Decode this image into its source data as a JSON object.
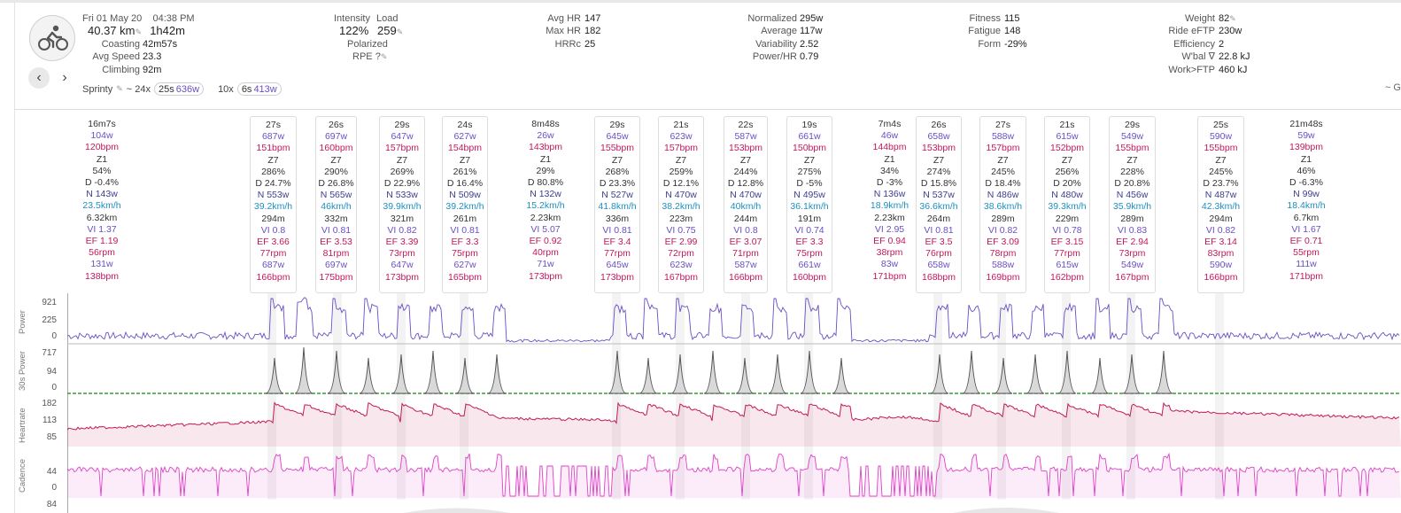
{
  "header": {
    "date": "Fri 01 May 20",
    "time": "04:38 PM",
    "distance": "40.37 km",
    "duration": "1h42m",
    "coasting_label": "Coasting",
    "coasting": "42m57s",
    "avg_speed_label": "Avg Speed",
    "avg_speed": "23.3",
    "climbing_label": "Climbing",
    "climbing": "92m",
    "intensity_label": "Intensity",
    "intensity": "122%",
    "load_label": "Load",
    "load": "259",
    "polarized": "Polarized",
    "rpe_label": "RPE",
    "rpe": "?",
    "avg_hr_label": "Avg HR",
    "avg_hr": "147",
    "max_hr_label": "Max HR",
    "max_hr": "182",
    "hrrc_label": "HRRc",
    "hrrc": "25",
    "normalized_label": "Normalized",
    "normalized": "295w",
    "average_label": "Average",
    "average": "117w",
    "variability_label": "Variability",
    "variability": "2.52",
    "power_hr_label": "Power/HR",
    "power_hr": "0.79",
    "fitness_label": "Fitness",
    "fitness": "115",
    "fatigue_label": "Fatigue",
    "fatigue": "148",
    "form_label": "Form",
    "form": "-29%",
    "weight_label": "Weight",
    "weight": "82",
    "ride_eftp_label": "Ride eFTP",
    "ride_eftp": "230w",
    "efficiency_label": "Efficiency",
    "efficiency": "2",
    "wbal_label": "W'bal ∇",
    "wbal": "22.8 kJ",
    "work_ftp_label": "Work>FTP",
    "work_ftp": "460 kJ",
    "sprint_label": "Sprinty",
    "sprint_a_prefix": "~ 24x",
    "sprint_a_dur": "25s",
    "sprint_a_pw": "636w",
    "sprint_b_prefix": "10x",
    "sprint_b_dur": "6s",
    "sprint_b_pw": "413w",
    "cut_text": "~ G"
  },
  "intervals": [
    {
      "dur": "16m7s",
      "pw": "104w",
      "hr": "120bpm",
      "zone": "Z1",
      "pct": "54%",
      "d": "D -0.4%",
      "n": "N 143w",
      "spd": "23.5km/h",
      "dist": "6.32km",
      "vi": "VI 1.37",
      "ef": "EF 1.19",
      "rpm": "56rpm",
      "apw": "131w",
      "ahr": "138bpm"
    },
    {
      "dur": "27s",
      "pw": "687w",
      "hr": "151bpm",
      "zone": "Z7",
      "pct": "286%",
      "d": "D 24.7%",
      "n": "N 553w",
      "spd": "39.2km/h",
      "dist": "294m",
      "vi": "VI 0.8",
      "ef": "EF 3.66",
      "rpm": "77rpm",
      "apw": "687w",
      "ahr": "166bpm"
    },
    {
      "dur": "26s",
      "pw": "697w",
      "hr": "160bpm",
      "zone": "Z7",
      "pct": "290%",
      "d": "D 26.8%",
      "n": "N 565w",
      "spd": "46km/h",
      "dist": "332m",
      "vi": "VI 0.81",
      "ef": "EF 3.53",
      "rpm": "81rpm",
      "apw": "697w",
      "ahr": "175bpm"
    },
    {
      "dur": "29s",
      "pw": "647w",
      "hr": "157bpm",
      "zone": "Z7",
      "pct": "269%",
      "d": "D 22.9%",
      "n": "N 533w",
      "spd": "39.9km/h",
      "dist": "321m",
      "vi": "VI 0.82",
      "ef": "EF 3.39",
      "rpm": "73rpm",
      "apw": "647w",
      "ahr": "173bpm"
    },
    {
      "dur": "24s",
      "pw": "627w",
      "hr": "154bpm",
      "zone": "Z7",
      "pct": "261%",
      "d": "D 16.4%",
      "n": "N 509w",
      "spd": "39.2km/h",
      "dist": "261m",
      "vi": "VI 0.81",
      "ef": "EF 3.3",
      "rpm": "75rpm",
      "apw": "627w",
      "ahr": "165bpm"
    },
    {
      "dur": "8m48s",
      "pw": "26w",
      "hr": "143bpm",
      "zone": "Z1",
      "pct": "29%",
      "d": "D 80.8%",
      "n": "N 132w",
      "spd": "15.2km/h",
      "dist": "2.23km",
      "vi": "VI 5.07",
      "ef": "EF 0.92",
      "rpm": "40rpm",
      "apw": "71w",
      "ahr": "173bpm"
    },
    {
      "dur": "29s",
      "pw": "645w",
      "hr": "155bpm",
      "zone": "Z7",
      "pct": "268%",
      "d": "D 23.3%",
      "n": "N 527w",
      "spd": "41.8km/h",
      "dist": "336m",
      "vi": "VI 0.81",
      "ef": "EF 3.4",
      "rpm": "77rpm",
      "apw": "645w",
      "ahr": "173bpm"
    },
    {
      "dur": "21s",
      "pw": "623w",
      "hr": "157bpm",
      "zone": "Z7",
      "pct": "259%",
      "d": "D 12.1%",
      "n": "N 470w",
      "spd": "38.2km/h",
      "dist": "223m",
      "vi": "VI 0.75",
      "ef": "EF 2.99",
      "rpm": "72rpm",
      "apw": "623w",
      "ahr": "167bpm"
    },
    {
      "dur": "22s",
      "pw": "587w",
      "hr": "153bpm",
      "zone": "Z7",
      "pct": "244%",
      "d": "D 12.8%",
      "n": "N 470w",
      "spd": "40km/h",
      "dist": "244m",
      "vi": "VI 0.8",
      "ef": "EF 3.07",
      "rpm": "71rpm",
      "apw": "587w",
      "ahr": "166bpm"
    },
    {
      "dur": "19s",
      "pw": "661w",
      "hr": "150bpm",
      "zone": "Z7",
      "pct": "275%",
      "d": "D -5%",
      "n": "N 495w",
      "spd": "36.1km/h",
      "dist": "191m",
      "vi": "VI 0.74",
      "ef": "EF 3.3",
      "rpm": "75rpm",
      "apw": "661w",
      "ahr": "160bpm"
    },
    {
      "dur": "7m4s",
      "pw": "46w",
      "hr": "144bpm",
      "zone": "Z1",
      "pct": "34%",
      "d": "D -3%",
      "n": "N 136w",
      "spd": "18.9km/h",
      "dist": "2.23km",
      "vi": "VI 2.95",
      "ef": "EF 0.94",
      "rpm": "38rpm",
      "apw": "83w",
      "ahr": "171bpm"
    },
    {
      "dur": "26s",
      "pw": "658w",
      "hr": "153bpm",
      "zone": "Z7",
      "pct": "274%",
      "d": "D 15.8%",
      "n": "N 537w",
      "spd": "36.6km/h",
      "dist": "264m",
      "vi": "VI 0.81",
      "ef": "EF 3.5",
      "rpm": "76rpm",
      "apw": "658w",
      "ahr": "168bpm"
    },
    {
      "dur": "27s",
      "pw": "588w",
      "hr": "157bpm",
      "zone": "Z7",
      "pct": "245%",
      "d": "D 18.4%",
      "n": "N 486w",
      "spd": "38.6km/h",
      "dist": "289m",
      "vi": "VI 0.82",
      "ef": "EF 3.09",
      "rpm": "78rpm",
      "apw": "588w",
      "ahr": "169bpm"
    },
    {
      "dur": "21s",
      "pw": "615w",
      "hr": "152bpm",
      "zone": "Z7",
      "pct": "256%",
      "d": "D 20%",
      "n": "N 480w",
      "spd": "39.3km/h",
      "dist": "229m",
      "vi": "VI 0.78",
      "ef": "EF 3.15",
      "rpm": "77rpm",
      "apw": "615w",
      "ahr": "162bpm"
    },
    {
      "dur": "29s",
      "pw": "549w",
      "hr": "155bpm",
      "zone": "Z7",
      "pct": "228%",
      "d": "D 20.8%",
      "n": "N 456w",
      "spd": "35.9km/h",
      "dist": "289m",
      "vi": "VI 0.83",
      "ef": "EF 2.94",
      "rpm": "73rpm",
      "apw": "549w",
      "ahr": "167bpm"
    },
    {
      "dur": "25s",
      "pw": "590w",
      "hr": "155bpm",
      "zone": "Z7",
      "pct": "245%",
      "d": "D 23.7%",
      "n": "N 487w",
      "spd": "42.3km/h",
      "dist": "294m",
      "vi": "VI 0.82",
      "ef": "EF 3.14",
      "rpm": "83rpm",
      "apw": "590w",
      "ahr": "166bpm"
    },
    {
      "dur": "21m48s",
      "pw": "59w",
      "hr": "139bpm",
      "zone": "Z1",
      "pct": "46%",
      "d": "D -6.3%",
      "n": "N 99w",
      "spd": "18.4km/h",
      "dist": "6.7km",
      "vi": "VI 1.67",
      "ef": "EF 0.71",
      "rpm": "55rpm",
      "apw": "111w",
      "ahr": "171bpm"
    }
  ],
  "charts": {
    "power": {
      "label": "Power",
      "ticks": [
        "921",
        "225",
        "0"
      ],
      "color": "#6a4fc4"
    },
    "power30": {
      "label": "30s Power",
      "ticks": [
        "717",
        "94",
        "0"
      ],
      "color": "#555555"
    },
    "heartrate": {
      "label": "Heartrate",
      "ticks": [
        "182",
        "113",
        "85"
      ],
      "color": "#c2185b"
    },
    "cadence": {
      "label": "Cadence",
      "ticks": [
        "44",
        "0"
      ],
      "color": "#e040c8"
    },
    "bottom_tick": "84"
  }
}
